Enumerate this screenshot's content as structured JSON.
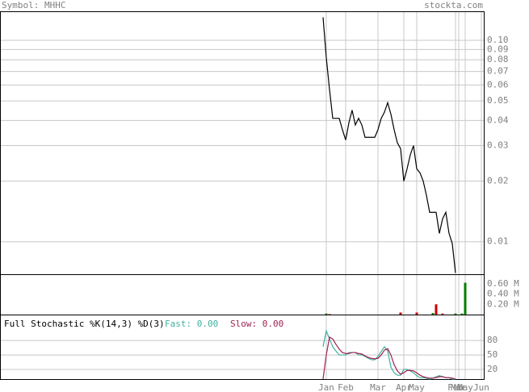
{
  "chart_data": [
    {
      "type": "line",
      "title": "Symbol: MHHC",
      "source": "stockta.com",
      "log": true,
      "grid": true,
      "ylim": [
        0.0069,
        0.138
      ],
      "yticks": [
        {
          "value": 0.1,
          "label": "0.10"
        },
        0.09,
        0.08,
        0.07,
        0.06,
        0.05,
        0.04,
        0.03,
        0.02,
        0.01
      ],
      "series": [
        {
          "color": "#000000",
          "values": [
            0.13,
            0.082,
            0.057,
            0.041,
            0.041,
            0.041,
            0.036,
            0.032,
            0.039,
            0.045,
            0.038,
            0.041,
            0.038,
            0.033,
            0.033,
            0.033,
            0.033,
            0.036,
            0.041,
            0.044,
            0.049,
            0.043,
            0.036,
            0.031,
            0.029,
            0.02,
            0.023,
            0.027,
            0.03,
            0.023,
            0.022,
            0.02,
            0.017,
            0.014,
            0.014,
            0.014,
            0.011,
            0.013,
            0.014,
            0.011,
            0.0098,
            0.007,
            null,
            null,
            null,
            null,
            null,
            null,
            null,
            null,
            null
          ]
        }
      ]
    },
    {
      "type": "bar",
      "ylim": [
        0,
        0.77
      ],
      "yticks": [
        {
          "value": 0.6,
          "label": "0.60 M"
        },
        {
          "value": 0.4,
          "label": "0.40 M"
        },
        {
          "value": 0.2,
          "label": "0.20 M"
        }
      ],
      "values": [
        null,
        0.02,
        0.01,
        null,
        null,
        null,
        null,
        null,
        null,
        null,
        null,
        null,
        null,
        null,
        null,
        null,
        null,
        null,
        null,
        null,
        null,
        null,
        null,
        null,
        0.04,
        null,
        null,
        null,
        null,
        0.04,
        null,
        null,
        null,
        null,
        0.03,
        0.2,
        null,
        0.02,
        null,
        null,
        null,
        0.02,
        null,
        0.02,
        0.62,
        null,
        null,
        null,
        null,
        null,
        null
      ],
      "colors": [
        null,
        "#008000",
        "#cc0000",
        null,
        null,
        null,
        null,
        null,
        null,
        null,
        null,
        null,
        null,
        null,
        null,
        null,
        null,
        null,
        null,
        null,
        null,
        null,
        null,
        null,
        "#cc0000",
        null,
        null,
        null,
        null,
        "#cc0000",
        null,
        null,
        null,
        null,
        "#008000",
        "#cc0000",
        null,
        "#cc0000",
        null,
        null,
        null,
        "#008000",
        null,
        "#008000",
        "#008000",
        null,
        null,
        null,
        null,
        null,
        null
      ]
    },
    {
      "type": "line",
      "title": "Full Stochastic %K(14,3) %D(3)",
      "ylim": [
        0,
        132
      ],
      "yticks": [
        80,
        50,
        20
      ],
      "grid": true,
      "categories": [
        null,
        "Jan",
        null,
        null,
        null,
        null,
        null,
        "Feb",
        null,
        null,
        null,
        null,
        null,
        null,
        null,
        null,
        null,
        "Mar",
        null,
        null,
        null,
        null,
        null,
        null,
        null,
        "Apr",
        null,
        null,
        null,
        "May",
        null,
        null,
        null,
        null,
        null,
        null,
        null,
        null,
        null,
        null,
        null,
        "Feb",
        "Mar",
        null,
        "May",
        null,
        null,
        null,
        null,
        "Jun",
        null
      ],
      "series": [
        {
          "name": "Fast: 0.00",
          "color": "#40b0a0",
          "values": [
            67,
            100,
            83,
            67,
            58,
            50,
            50,
            50,
            55,
            55,
            55,
            50,
            50,
            47,
            43,
            40,
            40,
            47,
            57,
            67,
            58,
            25,
            13,
            8,
            8,
            20,
            20,
            17,
            13,
            7,
            3,
            3,
            2,
            0,
            2,
            5,
            7,
            5,
            3,
            3,
            0,
            0,
            null,
            null,
            null,
            null,
            null,
            null,
            null,
            null,
            null
          ]
        },
        {
          "name": "Slow: 0.00",
          "color": "#a02050",
          "values": [
            0,
            50,
            87,
            83,
            72,
            62,
            55,
            53,
            53,
            55,
            55,
            53,
            52,
            48,
            45,
            43,
            42,
            43,
            50,
            60,
            63,
            50,
            30,
            17,
            10,
            13,
            18,
            18,
            17,
            13,
            8,
            5,
            3,
            2,
            2,
            3,
            5,
            5,
            3,
            3,
            2,
            0,
            null,
            null,
            null,
            null,
            null,
            null,
            null,
            null,
            null
          ]
        }
      ]
    }
  ]
}
